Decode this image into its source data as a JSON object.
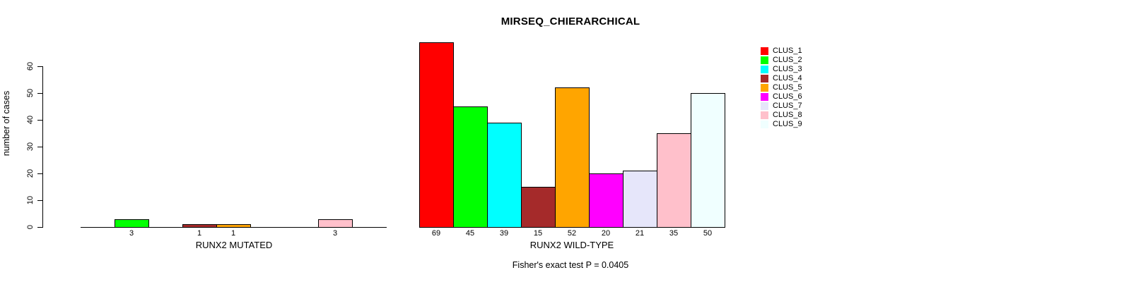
{
  "chart_data": {
    "type": "bar",
    "title": "MIRSEQ_CHIERARCHICAL",
    "ylabel": "number of cases",
    "ylim": [
      0,
      60
    ],
    "yticks": [
      0,
      10,
      20,
      30,
      40,
      50,
      60
    ],
    "grid": false,
    "bar_border_color": "#000000",
    "legend": {
      "position": "top-right",
      "entries": [
        {
          "label": "CLUS_1",
          "color": "#FF0000"
        },
        {
          "label": "CLUS_2",
          "color": "#00FF00"
        },
        {
          "label": "CLUS_3",
          "color": "#00FFFF"
        },
        {
          "label": "CLUS_4",
          "color": "#A52A2A"
        },
        {
          "label": "CLUS_5",
          "color": "#FFA500"
        },
        {
          "label": "CLUS_6",
          "color": "#FF00FF"
        },
        {
          "label": "CLUS_7",
          "color": "#E6E6FA"
        },
        {
          "label": "CLUS_8",
          "color": "#FFC0CB"
        },
        {
          "label": "CLUS_9",
          "color": "#F0FFFF"
        }
      ]
    },
    "groups": [
      {
        "label": "RUNX2 MUTATED",
        "values": [
          0,
          3,
          0,
          1,
          1,
          0,
          0,
          3,
          0
        ],
        "bar_labels": [
          "",
          "3",
          "",
          "1",
          "1",
          "",
          "",
          "3",
          ""
        ]
      },
      {
        "label": "RUNX2 WILD-TYPE",
        "values": [
          69,
          45,
          39,
          15,
          52,
          20,
          21,
          35,
          50
        ],
        "bar_labels": [
          "69",
          "45",
          "39",
          "15",
          "52",
          "20",
          "21",
          "35",
          "50"
        ]
      }
    ],
    "footnote": "Fisher's exact test P = 0.0405"
  }
}
